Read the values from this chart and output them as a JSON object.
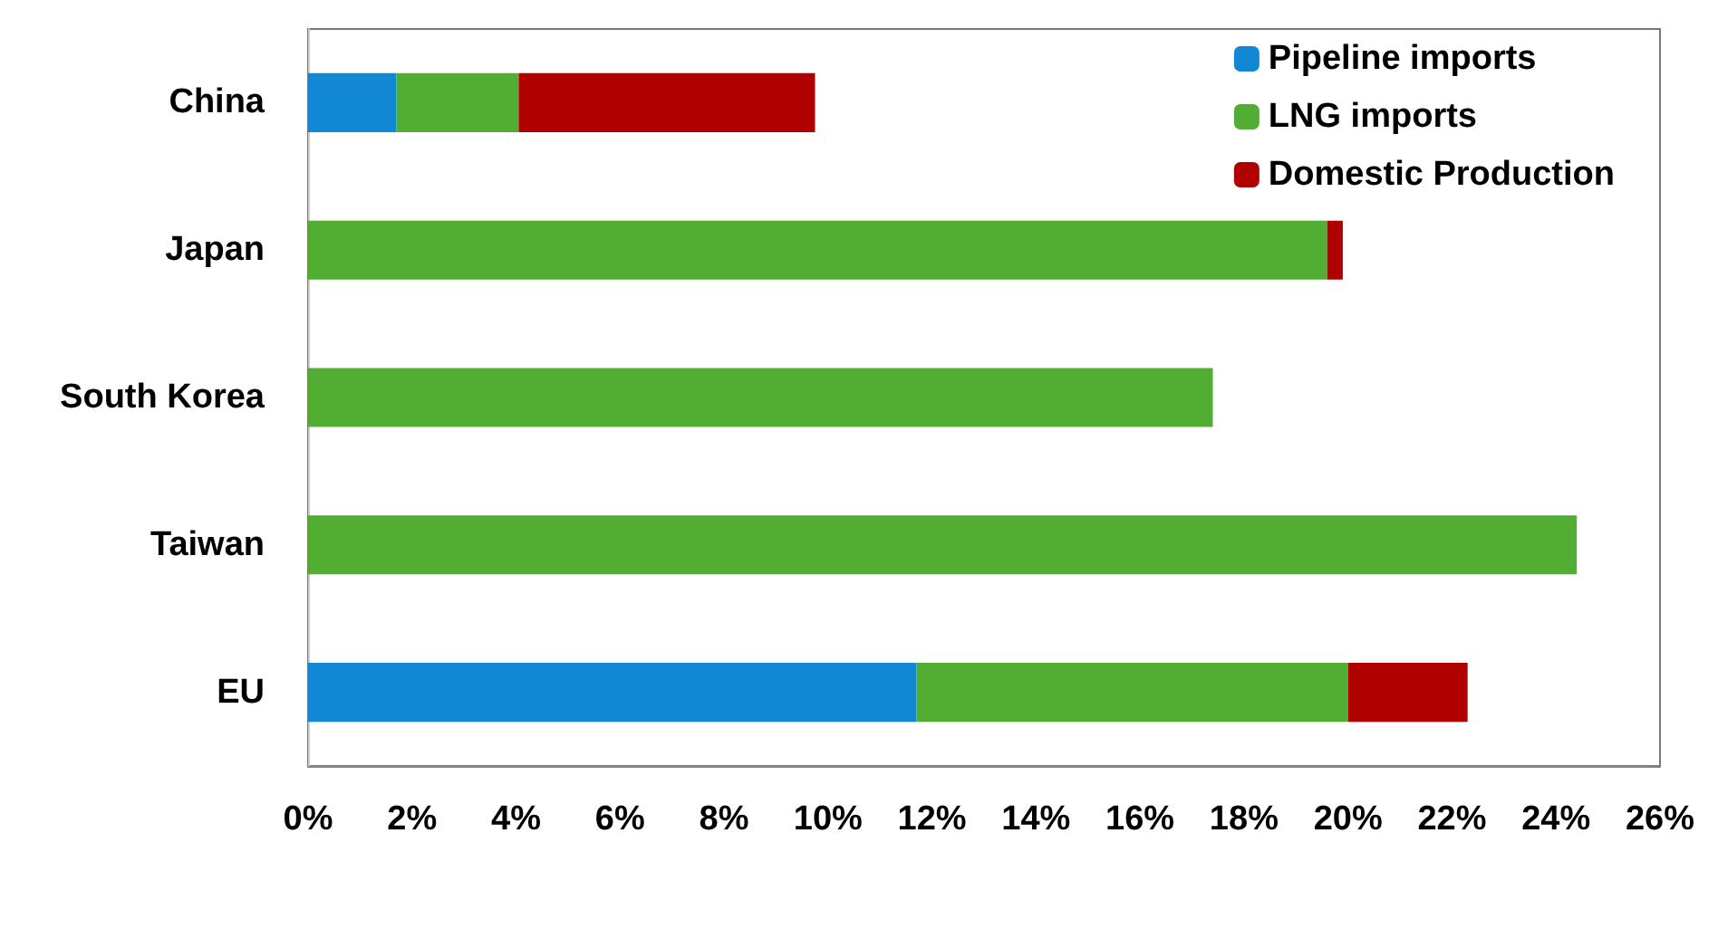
{
  "chart_data": {
    "type": "bar",
    "orientation": "horizontal",
    "stacked": true,
    "categories": [
      "China",
      "Japan",
      "South Korea",
      "Taiwan",
      "EU"
    ],
    "series": [
      {
        "name": "Pipeline imports",
        "color": "#1287d4",
        "values": [
          1.7,
          0,
          0,
          0,
          11.7
        ]
      },
      {
        "name": "LNG imports",
        "color": "#52ad33",
        "values": [
          2.35,
          19.6,
          17.4,
          24.4,
          8.3
        ]
      },
      {
        "name": "Domestic Production",
        "color": "#b00000",
        "values": [
          5.7,
          0.3,
          0,
          0,
          2.3
        ]
      }
    ],
    "xlim": [
      0,
      26
    ],
    "xticks": [
      {
        "value": 0,
        "label": "0%"
      },
      {
        "value": 2,
        "label": "2%"
      },
      {
        "value": 4,
        "label": "4%"
      },
      {
        "value": 6,
        "label": "6%"
      },
      {
        "value": 8,
        "label": "8%"
      },
      {
        "value": 10,
        "label": "10%"
      },
      {
        "value": 12,
        "label": "12%"
      },
      {
        "value": 14,
        "label": "14%"
      },
      {
        "value": 16,
        "label": "16%"
      },
      {
        "value": 18,
        "label": "18%"
      },
      {
        "value": 20,
        "label": "20%"
      },
      {
        "value": 22,
        "label": "22%"
      },
      {
        "value": 24,
        "label": "24%"
      },
      {
        "value": 26,
        "label": "26%"
      }
    ],
    "grid": false,
    "legend": "top right"
  }
}
